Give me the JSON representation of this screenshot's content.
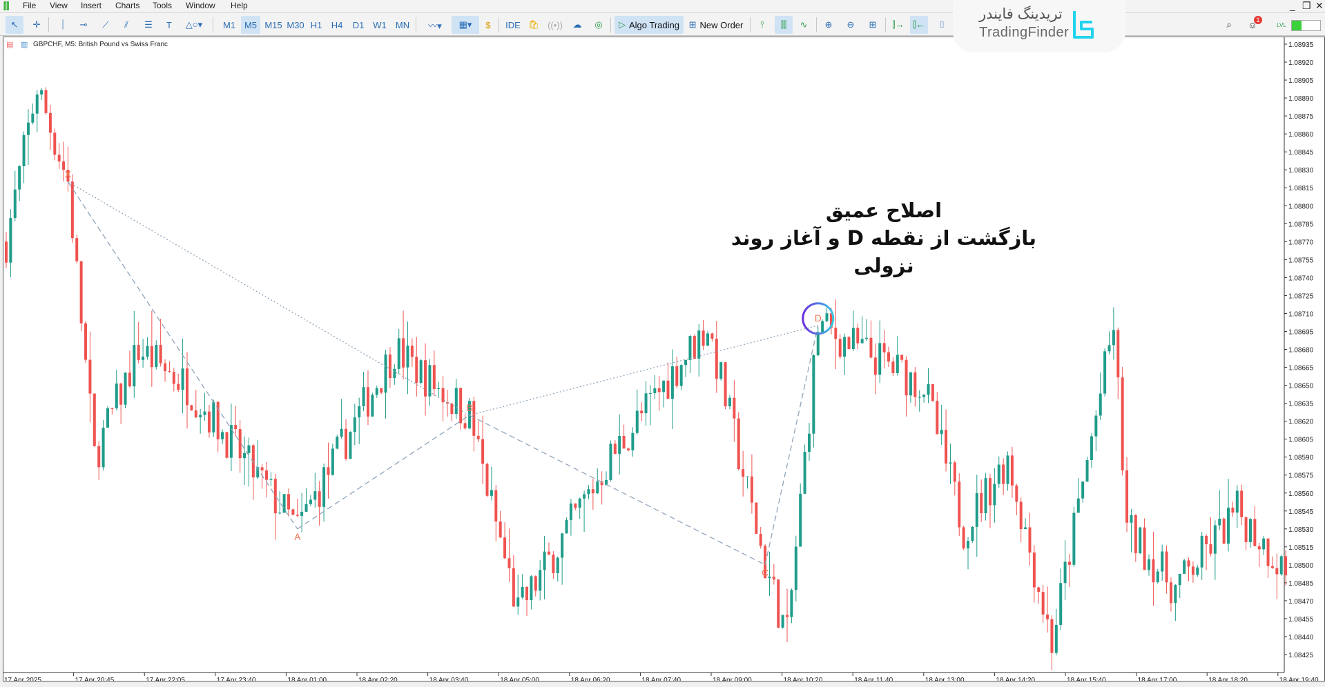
{
  "menu": {
    "items": [
      "File",
      "View",
      "Insert",
      "Charts",
      "Tools",
      "Window",
      "Help"
    ]
  },
  "toolbar": {
    "timeframes": [
      "M1",
      "M5",
      "M15",
      "M30",
      "H1",
      "H4",
      "D1",
      "W1",
      "MN"
    ],
    "active_timeframe": "M5",
    "ide_label": "IDE",
    "algo_trading_label": "Algo Trading",
    "new_order_label": "New Order",
    "notification_count": "1",
    "level_label": "LVL"
  },
  "logo": {
    "persian": "تریدینگ فایندر",
    "english": "TradingFinder"
  },
  "chart": {
    "title": "GBPCHF, M5:  British Pound vs Swiss Franc",
    "annotation_line1": "اصلاح عمیق",
    "annotation_line2": "بازگشت از نقطه D و آغاز روند نزولی",
    "colors": {
      "bull": "#1f9c8a",
      "bear": "#ef5350",
      "pattern": "#8fa3b8",
      "pattern_label": "#f07850"
    }
  },
  "chart_data": {
    "type": "candlestick",
    "symbol": "GBPCHF",
    "timeframe": "M5",
    "ylim": [
      1.0842,
      1.0895
    ],
    "y_ticks": [
      "1.08935",
      "1.08920",
      "1.08905",
      "1.08890",
      "1.08875",
      "1.08860",
      "1.08845",
      "1.08830",
      "1.08815",
      "1.08800",
      "1.08785",
      "1.08770",
      "1.08755",
      "1.08740",
      "1.08725",
      "1.08710",
      "1.08695",
      "1.08680",
      "1.08665",
      "1.08650",
      "1.08635",
      "1.08620",
      "1.08605",
      "1.08590",
      "1.08575",
      "1.08560",
      "1.08545",
      "1.08530",
      "1.08515",
      "1.08500",
      "1.08485",
      "1.08470",
      "1.08455",
      "1.08440",
      "1.08425"
    ],
    "x_ticks": [
      "17 Apr 2025",
      "17 Apr 20:45",
      "17 Apr 22:05",
      "17 Apr 23:40",
      "18 Apr 01:00",
      "18 Apr 02:20",
      "18 Apr 03:40",
      "18 Apr 05:00",
      "18 Apr 06:20",
      "18 Apr 07:40",
      "18 Apr 09:00",
      "18 Apr 10:20",
      "18 Apr 11:40",
      "18 Apr 13:00",
      "18 Apr 14:20",
      "18 Apr 15:40",
      "18 Apr 17:00",
      "18 Apr 18:20",
      "18 Apr 19:40"
    ],
    "start_time": "17 Apr 19:25",
    "pattern_points": [
      {
        "label": "X",
        "time": "17 Apr 20:35",
        "price": 1.0882
      },
      {
        "label": "A",
        "time": "18 Apr 00:55",
        "price": 1.0853
      },
      {
        "label": "B",
        "time": "18 Apr 04:10",
        "price": 1.08625
      },
      {
        "label": "C",
        "time": "18 Apr 09:45",
        "price": 1.085
      },
      {
        "label": "D",
        "time": "18 Apr 10:45",
        "price": 1.087
      }
    ],
    "price_path": [
      [
        "17 Apr 19:25",
        1.0877
      ],
      [
        "17 Apr 20:00",
        1.089
      ],
      [
        "17 Apr 20:35",
        1.0882
      ],
      [
        "17 Apr 21:05",
        1.0859
      ],
      [
        "17 Apr 21:55",
        1.0868
      ],
      [
        "17 Apr 22:50",
        1.0865
      ],
      [
        "18 Apr 00:55",
        1.0853
      ],
      [
        "18 Apr 02:45",
        1.0868
      ],
      [
        "18 Apr 04:10",
        1.08625
      ],
      [
        "18 Apr 05:05",
        1.0846
      ],
      [
        "18 Apr 06:50",
        1.0859
      ],
      [
        "18 Apr 08:40",
        1.087
      ],
      [
        "18 Apr 09:45",
        1.085
      ],
      [
        "18 Apr 10:10",
        1.0844
      ],
      [
        "18 Apr 10:45",
        1.087
      ],
      [
        "18 Apr 12:45",
        1.0865
      ],
      [
        "18 Apr 13:30",
        1.0853
      ],
      [
        "18 Apr 14:20",
        1.0859
      ],
      [
        "18 Apr 15:10",
        1.08435
      ],
      [
        "18 Apr 16:20",
        1.087
      ],
      [
        "18 Apr 16:35",
        1.0853
      ],
      [
        "18 Apr 17:30",
        1.0848
      ],
      [
        "18 Apr 18:40",
        1.08545
      ],
      [
        "18 Apr 19:35",
        1.08495
      ]
    ]
  }
}
